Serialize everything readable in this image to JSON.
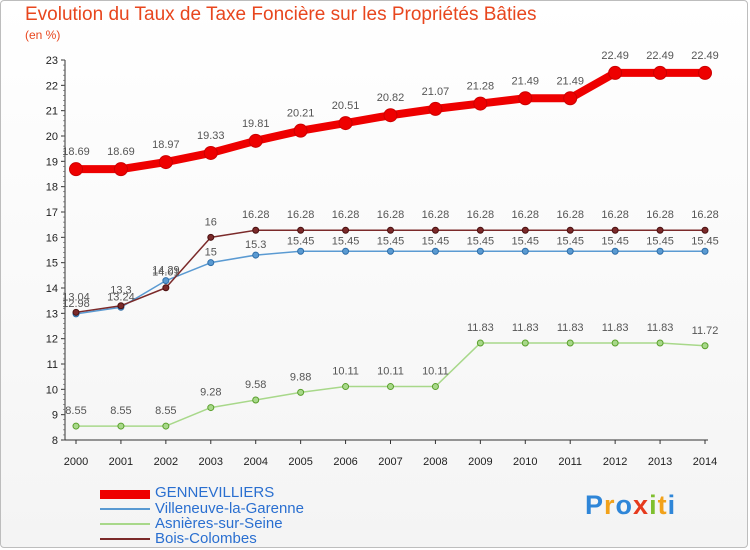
{
  "title": "Evolution du Taux de Taxe Foncière sur les Propriétés Bâties",
  "subtitle": "(en %)",
  "logo": {
    "letters": [
      "P",
      "r",
      "o",
      "x",
      "i",
      "t",
      "i"
    ],
    "colors": [
      "#2f86d8",
      "#f2a21a",
      "#2f86d8",
      "#e63a1d",
      "#7fbf2e",
      "#f2a21a",
      "#2f86d8"
    ]
  },
  "chart_data": {
    "type": "line",
    "title": "Evolution du Taux de Taxe Foncière sur les Propriétés Bâties",
    "ylabel": "(en %)",
    "x": [
      "2000",
      "2001",
      "2002",
      "2003",
      "2004",
      "2005",
      "2006",
      "2007",
      "2008",
      "2009",
      "2010",
      "2011",
      "2012",
      "2013",
      "2014"
    ],
    "ylim": [
      8,
      23
    ],
    "yticks": [
      8,
      9,
      10,
      11,
      12,
      13,
      14,
      15,
      16,
      17,
      18,
      19,
      20,
      21,
      22,
      23
    ],
    "grid": false,
    "legend": "bottom",
    "series": [
      {
        "name": "GENNEVILLIERS",
        "color": "#ee0000",
        "values": [
          18.69,
          18.69,
          18.97,
          19.33,
          19.81,
          20.21,
          20.51,
          20.82,
          21.07,
          21.28,
          21.49,
          21.49,
          22.49,
          22.49,
          22.49
        ],
        "labels": [
          "18.69",
          "18.69",
          "18.97",
          "19.33",
          "19.81",
          "20.21",
          "20.51",
          "20.82",
          "21.07",
          "21.28",
          "21.49",
          "21.49",
          "22.49",
          "22.49",
          "22.49"
        ]
      },
      {
        "name": "Villeneuve-la-Garenne",
        "color": "#5a9ad2",
        "values": [
          12.98,
          13.24,
          14.29,
          15,
          15.3,
          15.45,
          15.45,
          15.45,
          15.45,
          15.45,
          15.45,
          15.45,
          15.45,
          15.45,
          15.45
        ],
        "labels": [
          "12.98",
          "13.24",
          "14.29",
          "15",
          "15.3",
          "15.45",
          "15.45",
          "15.45",
          "15.45",
          "15.45",
          "15.45",
          "15.45",
          "15.45",
          "15.45",
          "15.45"
        ]
      },
      {
        "name": "Asnières-sur-Seine",
        "color": "#a8d88a",
        "values": [
          8.55,
          8.55,
          8.55,
          9.28,
          9.58,
          9.88,
          10.11,
          10.11,
          10.11,
          11.83,
          11.83,
          11.83,
          11.83,
          11.83,
          11.72
        ],
        "labels": [
          "8.55",
          "8.55",
          "8.55",
          "9.28",
          "9.58",
          "9.88",
          "10.11",
          "10.11",
          "10.11",
          "11.83",
          "11.83",
          "11.83",
          "11.83",
          "11.83",
          "11.72"
        ]
      },
      {
        "name": "Bois-Colombes",
        "color": "#7b2a2a",
        "values": [
          13.04,
          13.3,
          14.01,
          16,
          16.28,
          16.28,
          16.28,
          16.28,
          16.28,
          16.28,
          16.28,
          16.28,
          16.28,
          16.28,
          16.28
        ],
        "labels": [
          "13.04",
          "13.3",
          "14.01",
          "16",
          "16.28",
          "16.28",
          "16.28",
          "16.28",
          "16.28",
          "16.28",
          "16.28",
          "16.28",
          "16.28",
          "16.28",
          "16.28"
        ]
      }
    ]
  }
}
